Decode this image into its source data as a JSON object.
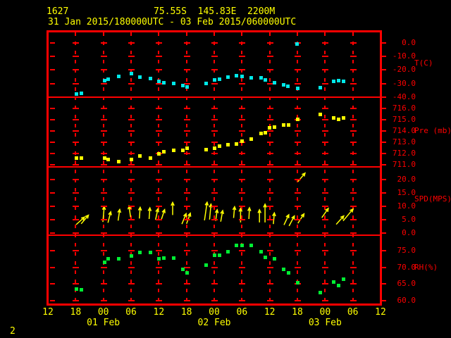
{
  "header": {
    "station_id": "1627",
    "location": "75.55S  145.83E  2200M",
    "period": "31 Jan 2015/180000UTC - 03 Feb 2015/060000UTC"
  },
  "footer": {
    "page_indicator": "2"
  },
  "colors": {
    "background": "#000000",
    "grid": "#ff0000",
    "axis_text": "#ff0000",
    "header_text": "#ffff00",
    "temperature": "#00e8e8",
    "pressure": "#ffff00",
    "wind": "#ffff00",
    "humidity": "#00ee33"
  },
  "chart_data": {
    "type": "scatter",
    "title": "AWS 1627 meteorological time series, 31 Jan 2015 18UTC - 03 Feb 2015 06UTC",
    "x_axis": {
      "hmin": 0,
      "hmax": 72,
      "tick_step_h": 6,
      "tick_labels": [
        "12",
        "18",
        "00",
        "06",
        "12",
        "18",
        "00",
        "06",
        "12",
        "18",
        "00",
        "06",
        "12"
      ],
      "date_labels": [
        {
          "text": "01 Feb",
          "hour": 12
        },
        {
          "text": "02 Feb",
          "hour": 36
        },
        {
          "text": "03 Feb",
          "hour": 60
        }
      ]
    },
    "panels": [
      {
        "name": "temperature",
        "unit_label": "T(C)",
        "color": "#00e8e8",
        "marker": "square",
        "ylim": [
          -40,
          8.12
        ],
        "levels": [
          0,
          -10,
          -20,
          -30,
          -40
        ],
        "level_labels": [
          "0.0",
          "-10.0",
          "-20.0",
          "-30.0",
          "-40.0"
        ],
        "label_at_value": -15.4,
        "points": [
          [
            6.1,
            -37.4
          ],
          [
            7.2,
            -37.1
          ],
          [
            12.2,
            -27.4
          ],
          [
            13,
            -26.4
          ],
          [
            15.3,
            -24.6
          ],
          [
            18,
            -22.6
          ],
          [
            19.9,
            -24.8
          ],
          [
            22.1,
            -25.9
          ],
          [
            23.9,
            -28.2
          ],
          [
            25,
            -29.3
          ],
          [
            27.1,
            -29.6
          ],
          [
            29.1,
            -31.3
          ],
          [
            30,
            -32.2
          ],
          [
            34.2,
            -29.6
          ],
          [
            36,
            -27.1
          ],
          [
            37.1,
            -26.7
          ],
          [
            38.9,
            -24.9
          ],
          [
            40.7,
            -23.8
          ],
          [
            41.9,
            -24.4
          ],
          [
            43.9,
            -25.3
          ],
          [
            46.1,
            -25.6
          ],
          [
            47,
            -27.3
          ],
          [
            49,
            -29.3
          ],
          [
            50.9,
            -30.8
          ],
          [
            51.9,
            -31.5
          ],
          [
            54,
            -33.1
          ],
          [
            53.9,
            -0.6
          ],
          [
            58.9,
            -32.5
          ],
          [
            61.8,
            -28.3
          ],
          [
            62.8,
            -27.4
          ],
          [
            63.9,
            -28.1
          ]
        ]
      },
      {
        "name": "pressure",
        "unit_label": "Pre (mb)",
        "color": "#ffff00",
        "marker": "square",
        "ylim": [
          710.8,
          717.03
        ],
        "levels": [
          716,
          715,
          714,
          713,
          712,
          711
        ],
        "level_labels": [
          "716.0",
          "715.0",
          "714.0",
          "713.0",
          "712.0",
          "711.0"
        ],
        "label_at_value": 714.0,
        "points": [
          [
            6.1,
            711.6
          ],
          [
            7.2,
            711.6
          ],
          [
            12.2,
            711.6
          ],
          [
            13,
            711.5
          ],
          [
            15.3,
            711.3
          ],
          [
            18,
            711.5
          ],
          [
            19.9,
            711.8
          ],
          [
            22.1,
            711.6
          ],
          [
            23.9,
            712.0
          ],
          [
            25,
            712.2
          ],
          [
            27.1,
            712.3
          ],
          [
            29.1,
            712.3
          ],
          [
            30,
            712.5
          ],
          [
            34.2,
            712.4
          ],
          [
            36,
            712.5
          ],
          [
            37.1,
            712.7
          ],
          [
            38.9,
            712.8
          ],
          [
            40.7,
            712.9
          ],
          [
            41.9,
            713.1
          ],
          [
            43.9,
            713.3
          ],
          [
            46.1,
            713.8
          ],
          [
            47,
            713.9
          ],
          [
            47.9,
            714.3
          ],
          [
            49,
            714.4
          ],
          [
            50.9,
            714.6
          ],
          [
            52,
            714.6
          ],
          [
            54,
            715.1
          ],
          [
            58.9,
            715.5
          ],
          [
            61.8,
            715.2
          ],
          [
            62.8,
            715.1
          ],
          [
            63.9,
            715.2
          ]
        ]
      },
      {
        "name": "wind_speed",
        "unit_label": "SPD(MPS)",
        "color": "#ffff00",
        "marker": "arrow",
        "ylim": [
          -0.87,
          24.76
        ],
        "levels": [
          20,
          15,
          10,
          5,
          0
        ],
        "level_labels": [
          "20.0",
          "15.0",
          "10.0",
          "5.0",
          "0.0"
        ],
        "label_at_value": 12.7,
        "arrows": [
          [
            6.1,
            3.1,
            48,
            16
          ],
          [
            7.2,
            3.4,
            40,
            16
          ],
          [
            11.9,
            4.1,
            5,
            22
          ],
          [
            13,
            3.8,
            14,
            16
          ],
          [
            15.2,
            4.6,
            8,
            16
          ],
          [
            17.9,
            5.9,
            -8,
            16
          ],
          [
            19.8,
            5.4,
            4,
            16
          ],
          [
            21.9,
            5.2,
            4,
            16
          ],
          [
            23.3,
            4.9,
            12,
            16
          ],
          [
            24.5,
            4.7,
            18,
            16
          ],
          [
            27,
            6.7,
            0,
            18
          ],
          [
            29,
            3.3,
            22,
            16
          ],
          [
            30,
            3.4,
            20,
            16
          ],
          [
            33.9,
            4.7,
            8,
            26
          ],
          [
            35,
            5,
            5,
            22
          ],
          [
            36.3,
            4.5,
            8,
            16
          ],
          [
            37.4,
            4.2,
            10,
            16
          ],
          [
            40.2,
            5.6,
            5,
            16
          ],
          [
            41.7,
            3.9,
            0,
            20
          ],
          [
            43.5,
            5.2,
            3,
            16
          ],
          [
            45.8,
            3.9,
            0,
            18
          ],
          [
            47,
            3.9,
            0,
            26
          ],
          [
            48.8,
            3.3,
            5,
            16
          ],
          [
            51.1,
            3,
            25,
            16
          ],
          [
            52.2,
            2.6,
            28,
            16
          ],
          [
            54.1,
            3.6,
            33,
            16
          ],
          [
            54.1,
            19.2,
            40,
            16
          ],
          [
            59.3,
            5.7,
            35,
            16
          ],
          [
            62.4,
            3.2,
            42,
            16
          ],
          [
            63.9,
            4.5,
            40,
            22
          ]
        ]
      },
      {
        "name": "relative_humidity",
        "unit_label": "RH(%)",
        "color": "#00ee33",
        "marker": "square",
        "ylim": [
          58.87,
          79.78
        ],
        "levels": [
          75,
          70,
          65,
          60
        ],
        "level_labels": [
          "75.0",
          "70.0",
          "65.0",
          "60.0"
        ],
        "label_at_value": 70,
        "points": [
          [
            6.1,
            63.5
          ],
          [
            7.2,
            63.4
          ],
          [
            12.2,
            71.7
          ],
          [
            13,
            72.8
          ],
          [
            15.3,
            72.8
          ],
          [
            18,
            73.5
          ],
          [
            19.9,
            74.7
          ],
          [
            22.1,
            74.7
          ],
          [
            23.9,
            72.8
          ],
          [
            25,
            72.9
          ],
          [
            27.1,
            72.9
          ],
          [
            29.1,
            69.5
          ],
          [
            30,
            68.5
          ],
          [
            34.2,
            70.8
          ],
          [
            36,
            73.7
          ],
          [
            37.1,
            73.7
          ],
          [
            38.9,
            74.9
          ],
          [
            40.7,
            76.8
          ],
          [
            41.9,
            76.8
          ],
          [
            43.9,
            76.8
          ],
          [
            46.1,
            74.9
          ],
          [
            47,
            73.1
          ],
          [
            49,
            72.8
          ],
          [
            50.9,
            69.5
          ],
          [
            52,
            68.5
          ],
          [
            54,
            65.4
          ],
          [
            58.9,
            62.5
          ],
          [
            61.8,
            65.6
          ],
          [
            62.8,
            64.6
          ],
          [
            63.9,
            66.5
          ]
        ]
      }
    ]
  }
}
